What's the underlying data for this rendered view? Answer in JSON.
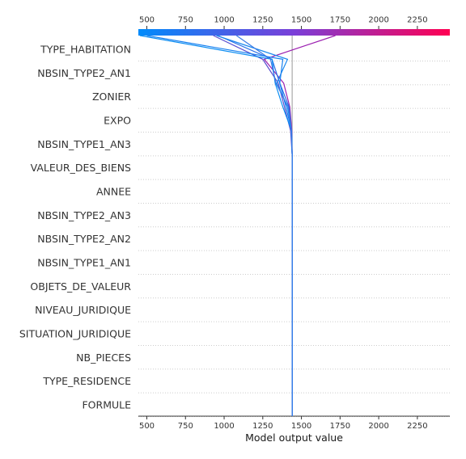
{
  "chart_data": {
    "type": "line",
    "title": "",
    "xlabel": "Model output value",
    "ylabel": "",
    "xlim": [
      445,
      2460
    ],
    "xticks": [
      500,
      750,
      1000,
      1250,
      1500,
      1750,
      2000,
      2250
    ],
    "grid": "horizontal dotted",
    "base_value": 1440,
    "features": [
      "TYPE_HABITATION",
      "NBSIN_TYPE2_AN1",
      "ZONIER",
      "EXPO",
      "NBSIN_TYPE1_AN3",
      "VALEUR_DES_BIENS",
      "ANNEE",
      "NBSIN_TYPE2_AN3",
      "NBSIN_TYPE2_AN2",
      "NBSIN_TYPE1_AN1",
      "OBJETS_DE_VALEUR",
      "NIVEAU_JURIDIQUE",
      "SITUATION_JURIDIQUE",
      "NB_PIECES",
      "TYPE_RESIDENCE",
      "FORMULE"
    ],
    "series": [
      {
        "values": [
          1440,
          1440,
          1440,
          1440,
          1440,
          1440,
          1440,
          1440,
          1440,
          1440,
          1440,
          1440,
          1438,
          1425,
          1385,
          1260,
          1720
        ],
        "color": "#9b1fb0"
      },
      {
        "values": [
          1440,
          1440,
          1440,
          1440,
          1440,
          1440,
          1440,
          1440,
          1440,
          1440,
          1440,
          1440,
          1430,
          1390,
          1350,
          1250,
          930
        ],
        "color": "#5a4fd0"
      },
      {
        "values": [
          1440,
          1440,
          1440,
          1440,
          1440,
          1440,
          1440,
          1440,
          1440,
          1440,
          1440,
          1440,
          1435,
          1420,
          1360,
          1310,
          960
        ],
        "color": "#2a6fe8"
      },
      {
        "values": [
          1440,
          1440,
          1440,
          1440,
          1440,
          1440,
          1440,
          1440,
          1440,
          1440,
          1440,
          1440,
          1436,
          1410,
          1340,
          1410,
          950
        ],
        "color": "#1a88ee"
      },
      {
        "values": [
          1440,
          1440,
          1440,
          1440,
          1440,
          1440,
          1440,
          1440,
          1440,
          1440,
          1440,
          1440,
          1437,
          1380,
          1330,
          1310,
          455
        ],
        "color": "#0b8df2"
      },
      {
        "values": [
          1440,
          1440,
          1440,
          1440,
          1440,
          1440,
          1440,
          1440,
          1440,
          1440,
          1440,
          1440,
          1436,
          1400,
          1360,
          1380,
          500
        ],
        "color": "#1780f0"
      },
      {
        "values": [
          1440,
          1440,
          1440,
          1440,
          1440,
          1440,
          1440,
          1440,
          1440,
          1440,
          1440,
          1440,
          1435,
          1415,
          1335,
          1300,
          1080
        ],
        "color": "#3a7be6"
      }
    ]
  }
}
